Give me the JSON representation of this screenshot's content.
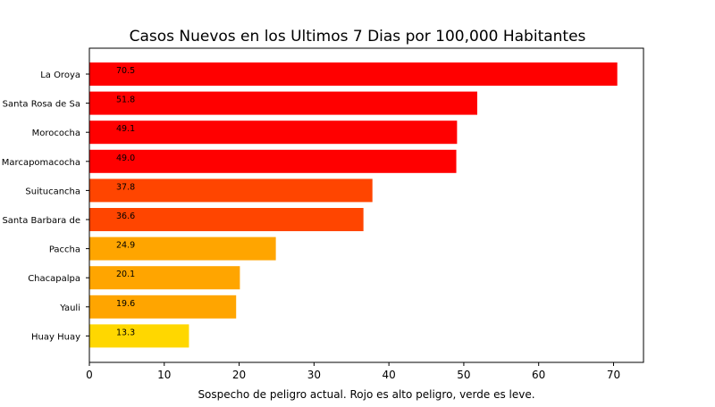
{
  "chart_data": {
    "type": "bar",
    "orientation": "horizontal",
    "title": "Casos Nuevos en los Ultimos 7 Dias por 100,000 Habitantes",
    "xlabel": "Sospecho de peligro actual. Rojo es alto peligro, verde es leve.",
    "ylabel": "",
    "xlim": [
      0,
      74
    ],
    "xticks": [
      0,
      10,
      20,
      30,
      40,
      50,
      60,
      70
    ],
    "grid": false,
    "categories": [
      "La Oroya",
      "Santa Rosa de Sa",
      "Morococha",
      "Marcapomacocha",
      "Suitucancha",
      "Santa Barbara de",
      "Paccha",
      "Chacapalpa",
      "Yauli",
      "Huay Huay"
    ],
    "values": [
      70.5,
      51.8,
      49.1,
      49.0,
      37.8,
      36.6,
      24.9,
      20.1,
      19.6,
      13.3
    ],
    "value_labels": [
      "70.5",
      "51.8",
      "49.1",
      "49.0",
      "37.8",
      "36.6",
      "24.9",
      "20.1",
      "19.6",
      "13.3"
    ],
    "colors": [
      "#ff0000",
      "#ff0000",
      "#ff0000",
      "#ff0000",
      "#ff4500",
      "#ff4500",
      "#ffa500",
      "#ffa500",
      "#ffa500",
      "#ffd700"
    ]
  }
}
